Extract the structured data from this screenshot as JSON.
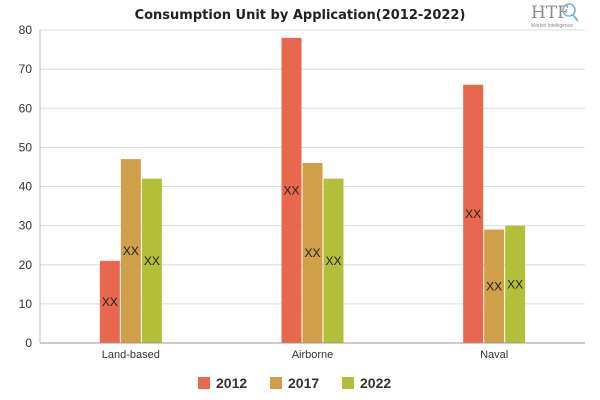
{
  "chart_data": {
    "type": "bar",
    "title": "Consumption Unit by  Application(2012-2022)",
    "xlabel": "",
    "ylabel": "",
    "categories": [
      "Land-based",
      "Airborne",
      "Naval"
    ],
    "series": [
      {
        "name": "2012",
        "color": "#e8684f",
        "values": [
          21,
          78,
          66
        ],
        "labels": [
          "XX",
          "XX",
          "XX"
        ]
      },
      {
        "name": "2017",
        "color": "#cf9f4a",
        "values": [
          47,
          46,
          29
        ],
        "labels": [
          "XX",
          "XX",
          "XX"
        ]
      },
      {
        "name": "2022",
        "color": "#b3bf3a",
        "values": [
          42,
          42,
          30
        ],
        "labels": [
          "XX",
          "XX",
          "XX"
        ]
      }
    ],
    "ylim": [
      0,
      80
    ],
    "yticks": [
      0,
      10,
      20,
      30,
      40,
      50,
      60,
      70,
      80
    ],
    "grid": true,
    "legend_position": "bottom"
  },
  "logo": {
    "text": "HTF",
    "subtitle": "Market Intelligence",
    "icon": "magnifier-globe-icon"
  }
}
